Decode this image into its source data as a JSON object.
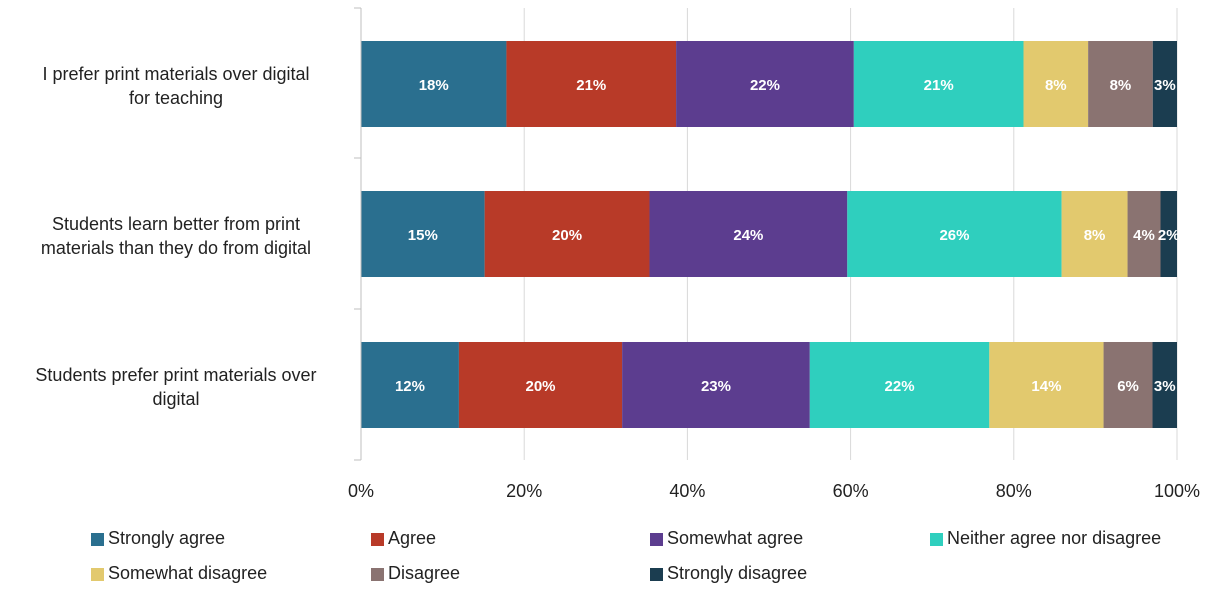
{
  "chart_data": {
    "type": "bar",
    "orientation": "horizontal",
    "stacked": "percent",
    "categories": [
      [
        "I prefer print materials over digital",
        "for teaching"
      ],
      [
        "Students learn better from print",
        "materials than they do from digital"
      ],
      [
        "Students prefer print materials over",
        "digital"
      ]
    ],
    "series": [
      {
        "name": "Strongly agree",
        "color": "#2A6F8F",
        "values": [
          18,
          15,
          12
        ],
        "labels": [
          "18%",
          "15%",
          "12%"
        ]
      },
      {
        "name": "Agree",
        "color": "#B83A28",
        "values": [
          21,
          20,
          20
        ],
        "labels": [
          "21%",
          "20%",
          "20%"
        ]
      },
      {
        "name": "Somewhat agree",
        "color": "#5C3D8F",
        "values": [
          22,
          24,
          23
        ],
        "labels": [
          "22%",
          "24%",
          "23%"
        ]
      },
      {
        "name": "Neither agree nor disagree",
        "color": "#2FCFBE",
        "values": [
          21,
          26,
          22
        ],
        "labels": [
          "21%",
          "26%",
          "22%"
        ]
      },
      {
        "name": "Somewhat disagree",
        "color": "#E2C96E",
        "values": [
          8,
          8,
          14
        ],
        "labels": [
          "8%",
          "8%",
          "14%"
        ]
      },
      {
        "name": "Disagree",
        "color": "#8A7371",
        "values": [
          8,
          4,
          6
        ],
        "labels": [
          "8%",
          "4%",
          "6%"
        ]
      },
      {
        "name": "Strongly disagree",
        "color": "#1B3D50",
        "values": [
          3,
          2,
          3
        ],
        "labels": [
          "3%",
          "2%",
          "3%"
        ]
      }
    ],
    "xticks": [
      "0%",
      "20%",
      "40%",
      "60%",
      "80%",
      "100%"
    ],
    "xlim": [
      0,
      100
    ],
    "grid": true,
    "legend": "bottom"
  }
}
